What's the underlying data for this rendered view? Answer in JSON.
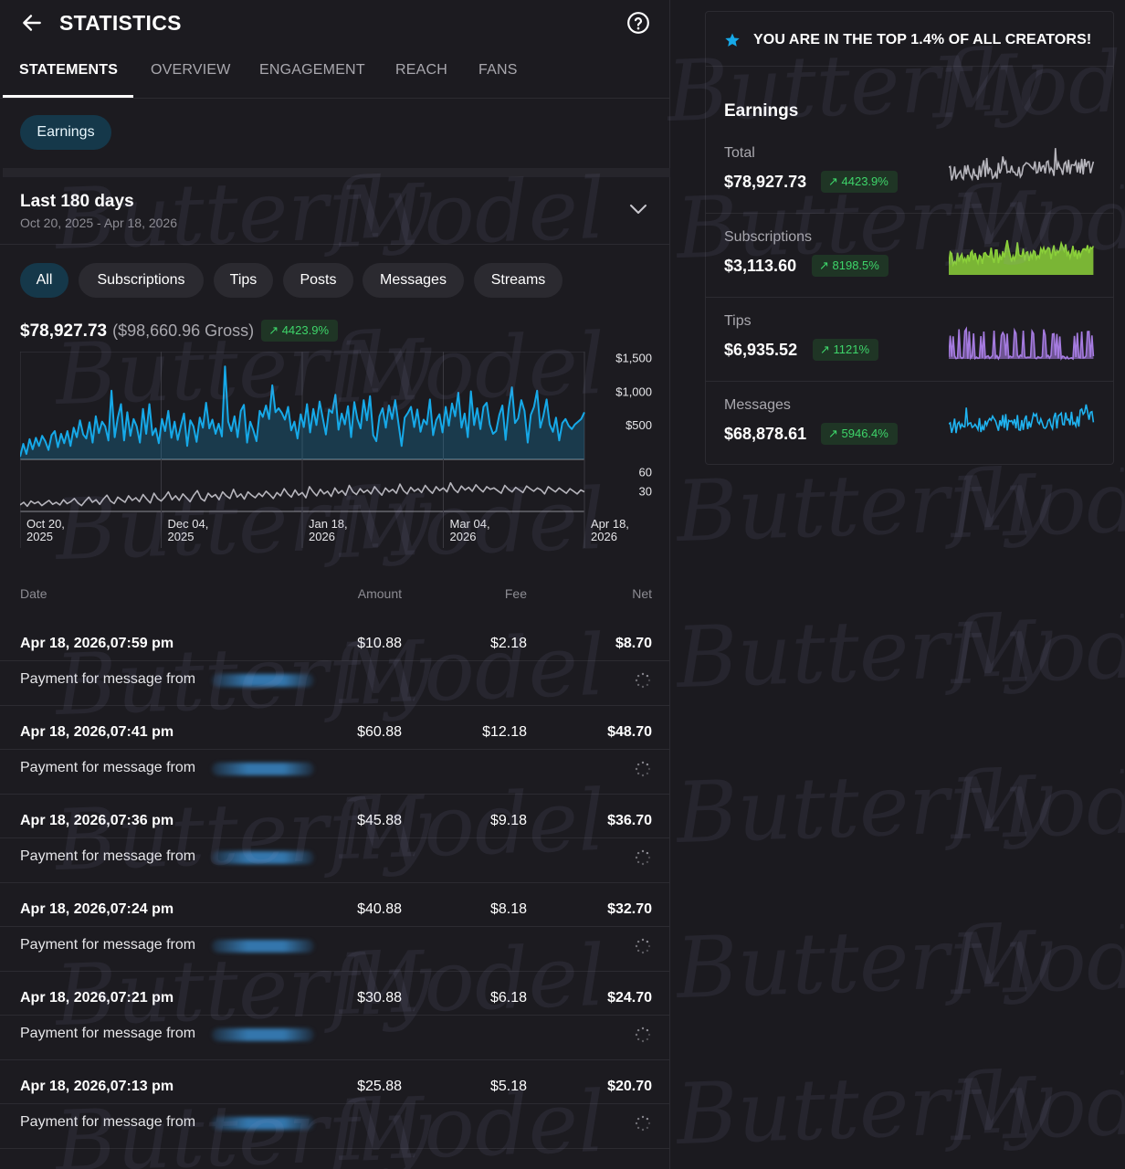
{
  "header": {
    "title": "STATISTICS",
    "back_icon": "arrow-left-icon",
    "help_icon": "question-circle-icon"
  },
  "tabs": [
    {
      "label": "STATEMENTS",
      "active": true
    },
    {
      "label": "OVERVIEW",
      "active": false
    },
    {
      "label": "ENGAGEMENT",
      "active": false
    },
    {
      "label": "REACH",
      "active": false
    },
    {
      "label": "FANS",
      "active": false
    }
  ],
  "earnings_chip": "Earnings",
  "range": {
    "title": "Last 180 days",
    "subtitle": "Oct 20, 2025 - Apr 18, 2026"
  },
  "filters": [
    {
      "label": "All",
      "active": true
    },
    {
      "label": "Subscriptions",
      "active": false
    },
    {
      "label": "Tips",
      "active": false
    },
    {
      "label": "Posts",
      "active": false
    },
    {
      "label": "Messages",
      "active": false
    },
    {
      "label": "Streams",
      "active": false
    }
  ],
  "summary": {
    "net": "$78,927.73",
    "gross": "($98,660.96 Gross)",
    "change": "4423.9%"
  },
  "chart_data": {
    "type": "line",
    "x_ticks": [
      "Oct 20, 2025",
      "Dec 04, 2025",
      "Jan 18, 2026",
      "Mar 04, 2026",
      "Apr 18, 2026"
    ],
    "upper": {
      "name": "",
      "type": "area",
      "y_ticks": [
        "$1,500",
        "$1,000",
        "$500"
      ],
      "ylim": [
        0,
        1600
      ],
      "values": [
        40,
        230,
        80,
        300,
        150,
        320,
        200,
        350,
        270,
        140,
        360,
        420,
        180,
        380,
        240,
        420,
        200,
        470,
        330,
        580,
        370,
        310,
        550,
        250,
        640,
        390,
        560,
        490,
        280,
        1020,
        330,
        620,
        820,
        280,
        700,
        350,
        600,
        490,
        250,
        750,
        380,
        820,
        360,
        460,
        240,
        600,
        420,
        720,
        320,
        560,
        290,
        500,
        680,
        200,
        580,
        490,
        260,
        620,
        470,
        840,
        460,
        590,
        380,
        530,
        340,
        1380,
        560,
        420,
        640,
        330,
        720,
        810,
        250,
        560,
        430,
        270,
        720,
        630,
        800,
        600,
        1100,
        700,
        760,
        690,
        590,
        780,
        430,
        560,
        310,
        670,
        480,
        820,
        400,
        750,
        510,
        860,
        620,
        370,
        740,
        690,
        960,
        440,
        680,
        520,
        790,
        330,
        850,
        600,
        460,
        880,
        580,
        940,
        360,
        270,
        640,
        760,
        470,
        800,
        600,
        880,
        540,
        200,
        620,
        690,
        780,
        480,
        740,
        410,
        590,
        520,
        890,
        360,
        580,
        670,
        400,
        780,
        500,
        830,
        640,
        990,
        470,
        680,
        330,
        1010,
        510,
        760,
        450,
        780,
        840,
        520,
        380,
        420,
        660,
        800,
        290,
        760,
        1070,
        540,
        610,
        880,
        720,
        250,
        660,
        780,
        1020,
        470,
        650,
        890,
        520,
        410,
        620,
        280,
        540,
        600,
        500,
        450,
        520,
        560,
        600,
        700
      ]
    },
    "lower": {
      "name": "",
      "y_ticks": [
        "60",
        "30"
      ],
      "ylim": [
        0,
        80
      ],
      "values": [
        10,
        14,
        8,
        16,
        12,
        15,
        9,
        13,
        17,
        11,
        14,
        10,
        18,
        12,
        15,
        20,
        13,
        9,
        16,
        22,
        14,
        18,
        11,
        19,
        25,
        16,
        12,
        22,
        18,
        14,
        24,
        17,
        21,
        15,
        26,
        19,
        13,
        28,
        20,
        16,
        22,
        30,
        18,
        24,
        17,
        27,
        21,
        15,
        25,
        32,
        20,
        16,
        28,
        22,
        26,
        18,
        30,
        24,
        20,
        34,
        22,
        27,
        19,
        30,
        25,
        21,
        28,
        23,
        31,
        26,
        20,
        29,
        24,
        35,
        27,
        22,
        33,
        25,
        29,
        21,
        38,
        30,
        24,
        34,
        27,
        31,
        23,
        36,
        28,
        32,
        25,
        40,
        30,
        26,
        35,
        29,
        33,
        27,
        38,
        31,
        25,
        36,
        30,
        34,
        28,
        42,
        32,
        27,
        37,
        31,
        35,
        29,
        40,
        33,
        28,
        38,
        32,
        36,
        30,
        44,
        34,
        29,
        39,
        33,
        37,
        31,
        41,
        35,
        30,
        38,
        34,
        36,
        32,
        28,
        40,
        34,
        30,
        37,
        33,
        29,
        39,
        35,
        31,
        36,
        33,
        27,
        38,
        34,
        30,
        36,
        32,
        28,
        35,
        31,
        27,
        33,
        30
      ]
    }
  },
  "table": {
    "headers": {
      "date": "Date",
      "amount": "Amount",
      "fee": "Fee",
      "net": "Net"
    },
    "rows": [
      {
        "date": "Apr 18, 2026,07:59 pm",
        "amount": "$10.88",
        "fee": "$2.18",
        "net": "$8.70",
        "desc": "Payment for message from"
      },
      {
        "date": "Apr 18, 2026,07:41 pm",
        "amount": "$60.88",
        "fee": "$12.18",
        "net": "$48.70",
        "desc": "Payment for message from"
      },
      {
        "date": "Apr 18, 2026,07:36 pm",
        "amount": "$45.88",
        "fee": "$9.18",
        "net": "$36.70",
        "desc": "Payment for message from"
      },
      {
        "date": "Apr 18, 2026,07:24 pm",
        "amount": "$40.88",
        "fee": "$8.18",
        "net": "$32.70",
        "desc": "Payment for message from"
      },
      {
        "date": "Apr 18, 2026,07:21 pm",
        "amount": "$30.88",
        "fee": "$6.18",
        "net": "$24.70",
        "desc": "Payment for message from"
      },
      {
        "date": "Apr 18, 2026,07:13 pm",
        "amount": "$25.88",
        "fee": "$5.18",
        "net": "$20.70",
        "desc": "Payment for message from"
      }
    ]
  },
  "right_panel": {
    "banner": "YOU ARE IN THE TOP 1.4% OF ALL CREATORS!",
    "title": "Earnings",
    "metrics": [
      {
        "label": "Total",
        "value": "$78,927.73",
        "change": "4423.9%",
        "color": "#b7b6bd"
      },
      {
        "label": "Subscriptions",
        "value": "$3,113.60",
        "change": "8198.5%",
        "color": "#8bd03a"
      },
      {
        "label": "Tips",
        "value": "$6,935.52",
        "change": "1121%",
        "color": "#a57be0"
      },
      {
        "label": "Messages",
        "value": "$68,878.61",
        "change": "5946.4%",
        "color": "#1fb3f0"
      }
    ]
  },
  "watermark": {
    "text_a": "Butterfly",
    "text_b": "Model"
  },
  "colors": {
    "accent": "#16a9e8",
    "positive": "#3ed56a",
    "chip_active": "#15384a"
  }
}
